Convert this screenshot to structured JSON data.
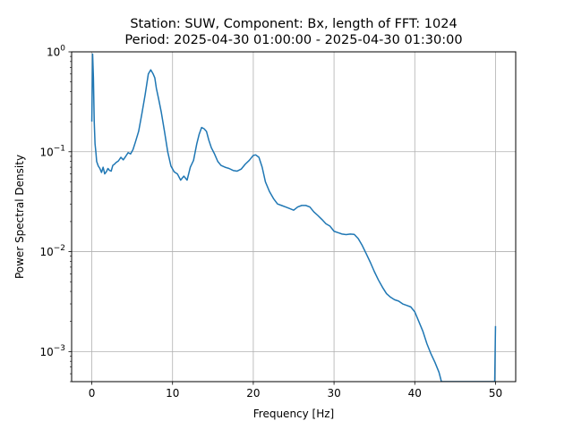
{
  "chart_data": {
    "type": "line",
    "title_line1": "Station: SUW, Component: Bx, length of FFT: 1024",
    "title_line2": "Period: 2025-04-30 01:00:00 - 2025-04-30 01:30:00",
    "xlabel": "Frequency [Hz]",
    "ylabel": "Power Spectral Density",
    "xlim": [
      -2.5,
      52.5
    ],
    "ylim": [
      0.0005,
      1
    ],
    "yscale": "log",
    "grid": true,
    "x_ticks": [
      0,
      10,
      20,
      30,
      40,
      50
    ],
    "x_tick_labels": [
      "0",
      "10",
      "20",
      "30",
      "40",
      "50"
    ],
    "y_ticks": [
      0.001,
      0.01,
      0.1,
      1
    ],
    "y_tick_labels": [
      "10^-3",
      "10^-2",
      "10^-1",
      "10^0"
    ],
    "series": [
      {
        "color": "#1f77b4",
        "x": [
          0.0,
          0.1,
          0.2,
          0.3,
          0.4,
          0.5,
          0.6,
          0.8,
          1.0,
          1.2,
          1.4,
          1.6,
          1.8,
          2.0,
          2.2,
          2.4,
          2.6,
          2.8,
          3.0,
          3.3,
          3.6,
          3.9,
          4.2,
          4.5,
          4.8,
          5.1,
          5.4,
          5.8,
          6.2,
          6.6,
          7.0,
          7.3,
          7.6,
          7.8,
          8.0,
          8.3,
          8.6,
          9.0,
          9.4,
          9.8,
          10.2,
          10.6,
          11.0,
          11.4,
          11.8,
          12.2,
          12.6,
          13.0,
          13.3,
          13.6,
          13.9,
          14.2,
          14.5,
          14.8,
          15.2,
          15.6,
          16.0,
          16.5,
          17.0,
          17.5,
          18.0,
          18.5,
          19.0,
          19.5,
          20.0,
          20.3,
          20.7,
          21.1,
          21.5,
          22.0,
          22.5,
          23.0,
          23.5,
          24.0,
          24.5,
          25.0,
          25.5,
          26.0,
          26.5,
          27.0,
          27.5,
          28.0,
          28.5,
          29.0,
          29.5,
          30.0,
          30.5,
          31.0,
          31.5,
          32.0,
          32.5,
          33.0,
          33.5,
          34.0,
          34.5,
          35.0,
          35.5,
          36.0,
          36.5,
          37.0,
          37.5,
          38.0,
          38.5,
          39.0,
          39.5,
          40.0,
          40.5,
          41.0,
          41.5,
          42.0,
          42.5,
          43.0,
          43.3,
          49.9,
          50.0
        ],
        "y": [
          0.2,
          0.95,
          0.55,
          0.2,
          0.12,
          0.1,
          0.08,
          0.072,
          0.068,
          0.062,
          0.07,
          0.06,
          0.063,
          0.068,
          0.065,
          0.064,
          0.073,
          0.075,
          0.078,
          0.081,
          0.088,
          0.083,
          0.09,
          0.098,
          0.095,
          0.105,
          0.125,
          0.16,
          0.24,
          0.37,
          0.6,
          0.66,
          0.6,
          0.55,
          0.43,
          0.33,
          0.25,
          0.16,
          0.1,
          0.072,
          0.063,
          0.06,
          0.052,
          0.057,
          0.052,
          0.07,
          0.082,
          0.12,
          0.15,
          0.175,
          0.17,
          0.16,
          0.13,
          0.11,
          0.095,
          0.08,
          0.073,
          0.07,
          0.068,
          0.065,
          0.064,
          0.067,
          0.075,
          0.082,
          0.092,
          0.093,
          0.088,
          0.07,
          0.05,
          0.04,
          0.034,
          0.03,
          0.029,
          0.028,
          0.027,
          0.026,
          0.028,
          0.029,
          0.029,
          0.028,
          0.025,
          0.023,
          0.021,
          0.019,
          0.018,
          0.016,
          0.0155,
          0.015,
          0.0148,
          0.015,
          0.0149,
          0.0135,
          0.0115,
          0.0095,
          0.0078,
          0.0063,
          0.0052,
          0.0044,
          0.0038,
          0.0035,
          0.0033,
          0.0032,
          0.003,
          0.0029,
          0.0028,
          0.0025,
          0.002,
          0.0016,
          0.0012,
          0.00095,
          0.00078,
          0.00062,
          0.0005,
          0.0005,
          0.0018
        ]
      }
    ]
  }
}
